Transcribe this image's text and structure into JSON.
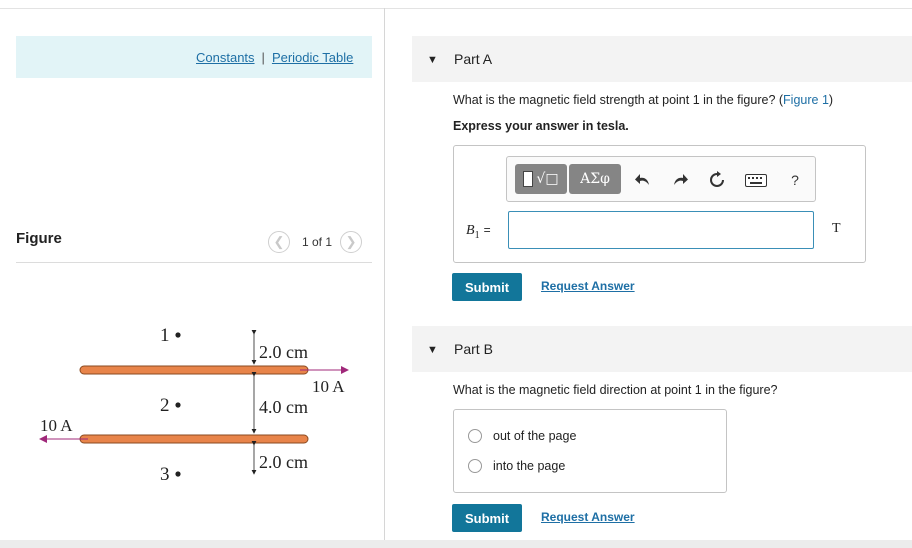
{
  "header": {
    "constants_link": "Constants",
    "separator": "|",
    "periodic_table_link": "Periodic Table"
  },
  "figure_panel": {
    "title": "Figure",
    "pager_text": "1 of 1",
    "prev_icon": "chevron-left-icon",
    "next_icon": "chevron-right-icon",
    "diagram": {
      "point_1": "1",
      "point_2": "2",
      "point_3": "3",
      "dist_top": "2.0 cm",
      "dist_middle": "4.0 cm",
      "dist_bottom": "2.0 cm",
      "current_top": "10 A",
      "current_bottom": "10 A",
      "wire_color": "#e8844a",
      "arrow_color": "#a0287a"
    }
  },
  "part_a": {
    "label": "Part A",
    "question": "What is the magnetic field strength at point 1 in the figure? (",
    "figure_link": "Figure 1",
    "question_end": ")",
    "instruction": "Express your answer in tesla.",
    "toolbar": {
      "template_icon": "templates-icon",
      "template_glyph": "√□",
      "greek_button": "ΑΣφ",
      "undo_icon": "undo-icon",
      "redo_icon": "redo-icon",
      "reset_icon": "reset-icon",
      "keyboard_icon": "keyboard-icon",
      "help_label": "?"
    },
    "variable": "B",
    "variable_sub": "1",
    "equals": "=",
    "input_value": "",
    "unit": "T",
    "submit": "Submit",
    "request_answer": "Request Answer"
  },
  "part_b": {
    "label": "Part B",
    "question": "What is the magnetic field direction at point 1 in the figure?",
    "options": [
      "out of the page",
      "into the page"
    ],
    "submit": "Submit",
    "request_answer": "Request Answer"
  },
  "colors": {
    "accent": "#12769a",
    "link": "#1e6fa5",
    "header_bar": "#e2f4f7",
    "part_header": "#f3f3f3"
  }
}
